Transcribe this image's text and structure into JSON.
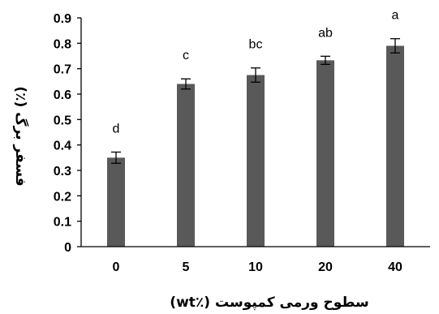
{
  "chart_data": {
    "type": "bar",
    "categories": [
      "0",
      "5",
      "10",
      "20",
      "40"
    ],
    "values": [
      0.35,
      0.64,
      0.675,
      0.733,
      0.79
    ],
    "errors": [
      0.022,
      0.02,
      0.028,
      0.016,
      0.028
    ],
    "significance_letters": [
      "d",
      "c",
      "bc",
      "ab",
      "a"
    ],
    "ylim": [
      0,
      0.9
    ],
    "yticks": [
      0,
      0.1,
      0.2,
      0.3,
      0.4,
      0.5,
      0.6,
      0.7,
      0.8,
      0.9
    ],
    "ytick_labels": [
      "0",
      "0.1",
      "0.2",
      "0.3",
      "0.4",
      "0.5",
      "0.6",
      "0.7",
      "0.8",
      "0.9"
    ],
    "xlabel": "سطوح ورمی کمپوست (٪wt)",
    "ylabel": "فسفر برگ (٪)",
    "bar_color": "#595959",
    "grid": false,
    "legend": "none"
  }
}
